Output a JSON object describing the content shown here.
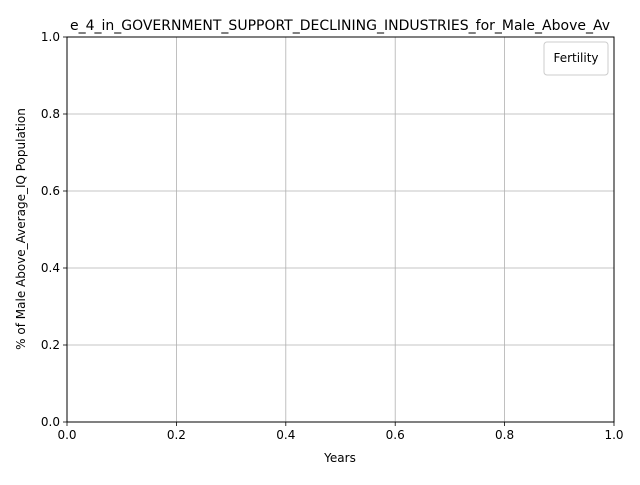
{
  "chart_data": {
    "type": "line",
    "title": "e_4_in_GOVERNMENT_SUPPORT_DECLINING_INDUSTRIES_for_Male_Above_Av",
    "xlabel": "Years",
    "ylabel": "% of Male Above_Average_IQ Population",
    "xlim": [
      0.0,
      1.0
    ],
    "ylim": [
      0.0,
      1.0
    ],
    "x_ticks": [
      {
        "value": 0.0,
        "label": "0.0"
      },
      {
        "value": 0.2,
        "label": "0.2"
      },
      {
        "value": 0.4,
        "label": "0.4"
      },
      {
        "value": 0.6,
        "label": "0.6"
      },
      {
        "value": 0.8,
        "label": "0.8"
      },
      {
        "value": 1.0,
        "label": "1.0"
      }
    ],
    "y_ticks": [
      {
        "value": 0.0,
        "label": "0.0"
      },
      {
        "value": 0.2,
        "label": "0.2"
      },
      {
        "value": 0.4,
        "label": "0.4"
      },
      {
        "value": 0.6,
        "label": "0.6"
      },
      {
        "value": 0.8,
        "label": "0.8"
      },
      {
        "value": 1.0,
        "label": "1.0"
      }
    ],
    "grid": true,
    "legend": {
      "title": "Fertility",
      "placement": "top-right",
      "entries": []
    },
    "series": []
  },
  "colors": {
    "grid": "#b0b0b0",
    "axis": "#000000",
    "background": "#ffffff"
  }
}
